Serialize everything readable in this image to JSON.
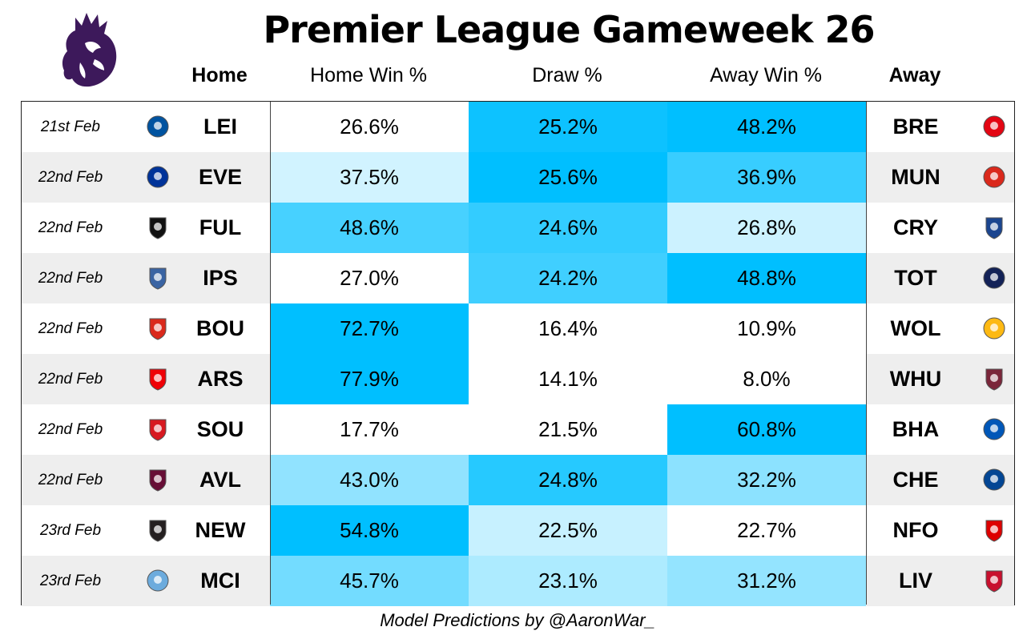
{
  "title": "Premier League Gameweek 26",
  "footer": "Model Predictions by @AaronWar_",
  "icons": {
    "logo": "premier-league-lion-logo"
  },
  "colors": {
    "heat_max": "#00bfff",
    "heat_min": "#ffffff",
    "row_alt": "#eeeeee"
  },
  "chart_data": {
    "type": "table",
    "headers": [
      "Home",
      "Home Win %",
      "Draw %",
      "Away Win %",
      "Away"
    ],
    "rows": [
      {
        "date": "21st Feb",
        "home": "LEI",
        "home_win": "26.6%",
        "draw": "25.2%",
        "away_win": "48.2%",
        "away": "BRE"
      },
      {
        "date": "22nd Feb",
        "home": "EVE",
        "home_win": "37.5%",
        "draw": "25.6%",
        "away_win": "36.9%",
        "away": "MUN"
      },
      {
        "date": "22nd Feb",
        "home": "FUL",
        "home_win": "48.6%",
        "draw": "24.6%",
        "away_win": "26.8%",
        "away": "CRY"
      },
      {
        "date": "22nd Feb",
        "home": "IPS",
        "home_win": "27.0%",
        "draw": "24.2%",
        "away_win": "48.8%",
        "away": "TOT"
      },
      {
        "date": "22nd Feb",
        "home": "BOU",
        "home_win": "72.7%",
        "draw": "16.4%",
        "away_win": "10.9%",
        "away": "WOL"
      },
      {
        "date": "22nd Feb",
        "home": "ARS",
        "home_win": "77.9%",
        "draw": "14.1%",
        "away_win": "8.0%",
        "away": "WHU"
      },
      {
        "date": "22nd Feb",
        "home": "SOU",
        "home_win": "17.7%",
        "draw": "21.5%",
        "away_win": "60.8%",
        "away": "BHA"
      },
      {
        "date": "22nd Feb",
        "home": "AVL",
        "home_win": "43.0%",
        "draw": "24.8%",
        "away_win": "32.2%",
        "away": "CHE"
      },
      {
        "date": "23rd Feb",
        "home": "NEW",
        "home_win": "54.8%",
        "draw": "22.5%",
        "away_win": "22.7%",
        "away": "NFO"
      },
      {
        "date": "23rd Feb",
        "home": "MCI",
        "home_win": "45.7%",
        "draw": "23.1%",
        "away_win": "31.2%",
        "away": "LIV"
      }
    ],
    "badge_colors": {
      "LEI": "#0053a0",
      "BRE": "#e30613",
      "EVE": "#003399",
      "MUN": "#da291c",
      "FUL": "#111111",
      "CRY": "#1b458f",
      "IPS": "#3a64a3",
      "TOT": "#132257",
      "BOU": "#da291c",
      "WOL": "#fdb913",
      "ARS": "#ef0107",
      "WHU": "#7a263a",
      "SOU": "#d71920",
      "BHA": "#0057b8",
      "AVL": "#670e36",
      "CHE": "#034694",
      "NEW": "#241f20",
      "NFO": "#dd0000",
      "MCI": "#6cabdd",
      "LIV": "#c8102e"
    },
    "heat_bands": [
      {
        "col": "home_win",
        "values": [
          0.0,
          0.18,
          0.72,
          0.0,
          1.0,
          1.0,
          0.0,
          0.43,
          1.0,
          0.55
        ]
      },
      {
        "col": "draw",
        "values": [
          0.95,
          1.0,
          0.8,
          0.75,
          0.0,
          0.0,
          0.0,
          0.85,
          0.22,
          0.32
        ]
      },
      {
        "col": "away_win",
        "values": [
          1.0,
          0.78,
          0.2,
          1.0,
          0.0,
          0.0,
          1.0,
          0.45,
          0.0,
          0.42
        ]
      }
    ]
  }
}
